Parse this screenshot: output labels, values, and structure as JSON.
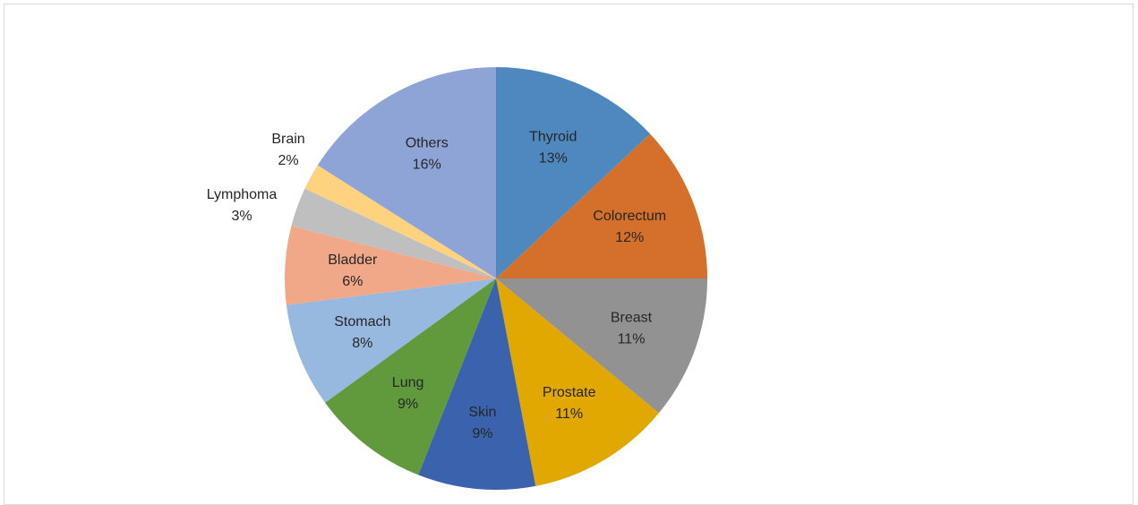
{
  "chart_data": {
    "type": "pie",
    "title": "",
    "start_angle_deg": 0,
    "direction": "clockwise",
    "slices": [
      {
        "name": "Thyroid",
        "value": 13,
        "label": "13%",
        "color": "#4E88BE"
      },
      {
        "name": "Colorectum",
        "value": 12,
        "label": "12%",
        "color": "#D4702B"
      },
      {
        "name": "Breast",
        "value": 11,
        "label": "11%",
        "color": "#929292"
      },
      {
        "name": "Prostate",
        "value": 11,
        "label": "11%",
        "color": "#E0A800"
      },
      {
        "name": "Skin",
        "value": 9,
        "label": "9%",
        "color": "#3B62AC"
      },
      {
        "name": "Lung",
        "value": 9,
        "label": "9%",
        "color": "#619A3D"
      },
      {
        "name": "Stomach",
        "value": 8,
        "label": "8%",
        "color": "#97B9E0"
      },
      {
        "name": "Bladder",
        "value": 6,
        "label": "6%",
        "color": "#F0A889"
      },
      {
        "name": "Lymphoma",
        "value": 3,
        "label": "3%",
        "color": "#BFBFBF"
      },
      {
        "name": "Brain",
        "value": 2,
        "label": "2%",
        "color": "#FFD280"
      },
      {
        "name": "Others",
        "value": 16,
        "label": "16%",
        "color": "#8FA4D6"
      }
    ]
  }
}
